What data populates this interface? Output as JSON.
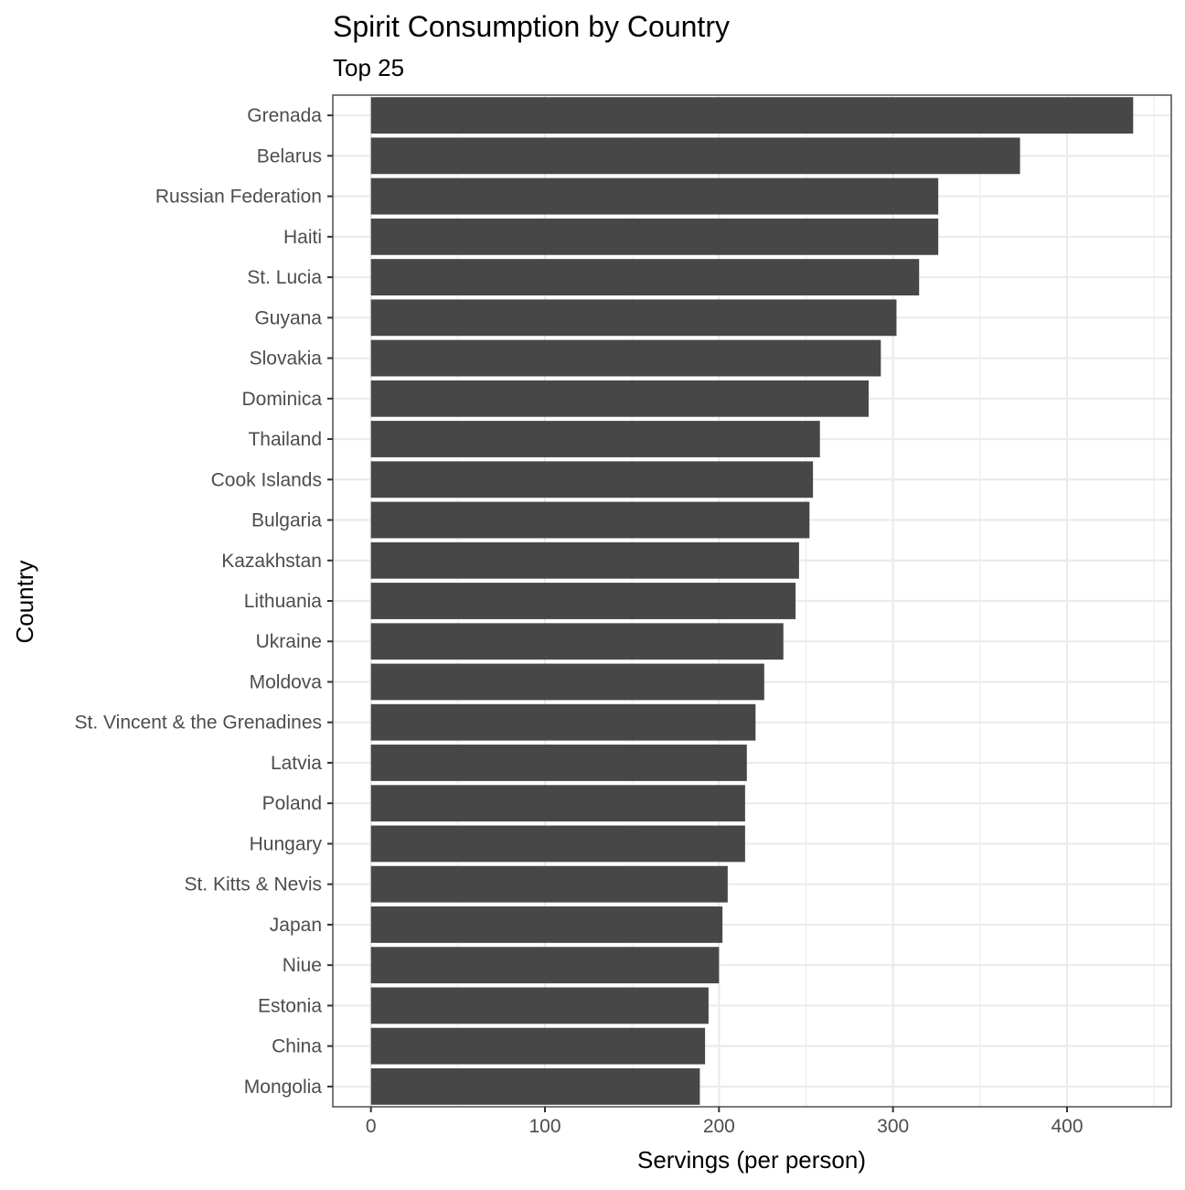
{
  "chart_data": {
    "type": "bar",
    "orientation": "horizontal",
    "title": "Spirit Consumption by Country",
    "subtitle": "Top 25",
    "xlabel": "Servings (per person)",
    "ylabel": "Country",
    "xlim": [
      -21.9,
      459.9
    ],
    "x_ticks": [
      0,
      100,
      200,
      300,
      400
    ],
    "grid": true,
    "bar_color": "#474747",
    "grid_color": "#ebebeb",
    "categories": [
      "Grenada",
      "Belarus",
      "Russian Federation",
      "Haiti",
      "St. Lucia",
      "Guyana",
      "Slovakia",
      "Dominica",
      "Thailand",
      "Cook Islands",
      "Bulgaria",
      "Kazakhstan",
      "Lithuania",
      "Ukraine",
      "Moldova",
      "St. Vincent & the Grenadines",
      "Latvia",
      "Poland",
      "Hungary",
      "St. Kitts & Nevis",
      "Japan",
      "Niue",
      "Estonia",
      "China",
      "Mongolia"
    ],
    "values": [
      438,
      373,
      326,
      326,
      315,
      302,
      293,
      286,
      258,
      254,
      252,
      246,
      244,
      237,
      226,
      221,
      216,
      215,
      215,
      205,
      202,
      200,
      194,
      192,
      189
    ]
  }
}
